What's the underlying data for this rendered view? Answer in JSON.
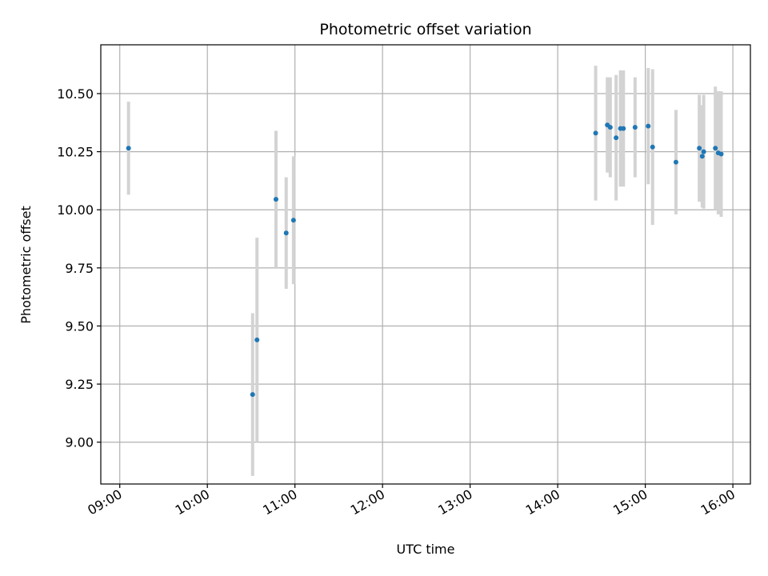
{
  "chart_data": {
    "type": "scatter",
    "title": "Photometric offset variation",
    "xlabel": "UTC time",
    "ylabel": "Photometric offset",
    "x_tick_labels": [
      "09:00",
      "10:00",
      "11:00",
      "12:00",
      "13:00",
      "14:00",
      "15:00",
      "16:00"
    ],
    "y_tick_labels": [
      "9.00",
      "9.25",
      "9.50",
      "9.75",
      "10.00",
      "10.25",
      "10.50"
    ],
    "xlim": [
      "08:47",
      "16:12"
    ],
    "ylim": [
      8.82,
      10.71
    ],
    "grid": true,
    "error_bars": "vertical",
    "colors": {
      "points": "#1f77b4",
      "error_bars": "#d3d3d3",
      "grid": "#b0b0b0",
      "axes": "#000000"
    },
    "points": [
      {
        "x": "09:06",
        "y": 10.265,
        "yerr": 0.2
      },
      {
        "x": "10:31",
        "y": 9.205,
        "yerr": 0.35
      },
      {
        "x": "10:34",
        "y": 9.44,
        "yerr": 0.44
      },
      {
        "x": "10:47",
        "y": 10.045,
        "yerr": 0.295
      },
      {
        "x": "10:54",
        "y": 9.9,
        "yerr": 0.24
      },
      {
        "x": "10:59",
        "y": 9.955,
        "yerr": 0.275
      },
      {
        "x": "14:26",
        "y": 10.33,
        "yerr": 0.29
      },
      {
        "x": "14:34",
        "y": 10.365,
        "yerr": 0.205
      },
      {
        "x": "14:36",
        "y": 10.355,
        "yerr": 0.215
      },
      {
        "x": "14:40",
        "y": 10.31,
        "yerr": 0.27
      },
      {
        "x": "14:43",
        "y": 10.35,
        "yerr": 0.25
      },
      {
        "x": "14:45",
        "y": 10.35,
        "yerr": 0.25
      },
      {
        "x": "14:53",
        "y": 10.355,
        "yerr": 0.215
      },
      {
        "x": "15:02",
        "y": 10.36,
        "yerr": 0.25
      },
      {
        "x": "15:05",
        "y": 10.27,
        "yerr": 0.335
      },
      {
        "x": "15:21",
        "y": 10.205,
        "yerr": 0.225
      },
      {
        "x": "15:37",
        "y": 10.265,
        "yerr": 0.23
      },
      {
        "x": "15:39",
        "y": 10.23,
        "yerr": 0.22
      },
      {
        "x": "15:40",
        "y": 10.25,
        "yerr": 0.245
      },
      {
        "x": "15:48",
        "y": 10.265,
        "yerr": 0.265
      },
      {
        "x": "15:50",
        "y": 10.245,
        "yerr": 0.265
      },
      {
        "x": "15:52",
        "y": 10.24,
        "yerr": 0.27
      }
    ]
  }
}
